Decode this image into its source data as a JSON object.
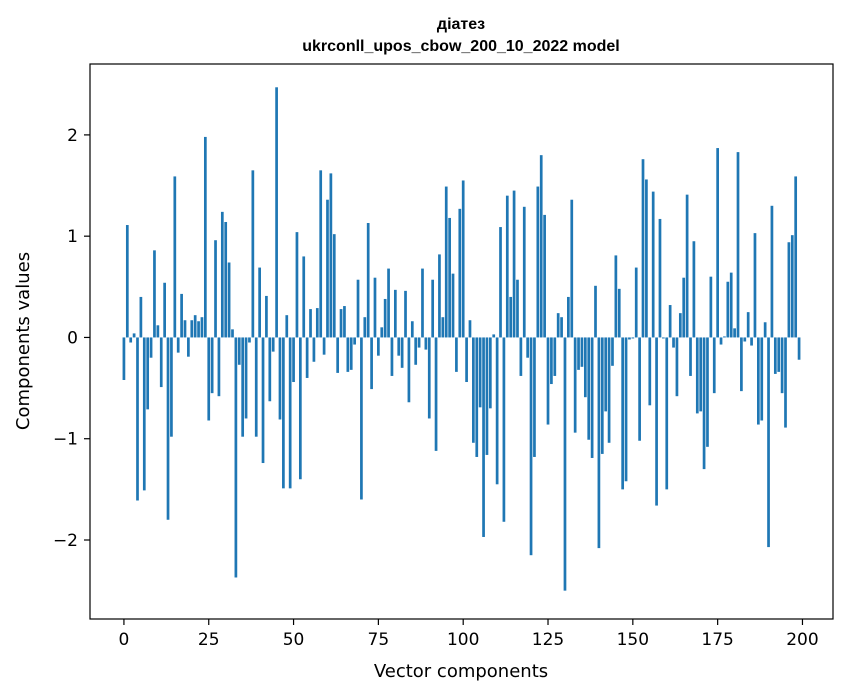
{
  "chart_data": {
    "type": "bar",
    "title_line1": "діатез",
    "title_line2": "ukrconll_upos_cbow_200_10_2022 model",
    "xlabel": "Vector components",
    "ylabel": "Components values",
    "xlim": [
      -10,
      209
    ],
    "ylim": [
      -2.78,
      2.7
    ],
    "xticks": [
      0,
      25,
      50,
      75,
      100,
      125,
      150,
      175,
      200
    ],
    "xtick_labels": [
      "0",
      "25",
      "50",
      "75",
      "100",
      "125",
      "150",
      "175",
      "200"
    ],
    "yticks": [
      -2,
      -1,
      0,
      1,
      2
    ],
    "ytick_labels": [
      "−2",
      "−1",
      "0",
      "1",
      "2"
    ],
    "bar_color": "#1f77b4",
    "values": [
      -0.42,
      1.11,
      -0.05,
      0.04,
      -1.61,
      0.4,
      -1.51,
      -0.71,
      -0.2,
      0.86,
      0.12,
      -0.49,
      0.54,
      -1.8,
      -0.98,
      1.59,
      -0.15,
      0.43,
      0.17,
      -0.19,
      0.17,
      0.22,
      0.16,
      0.2,
      1.98,
      -0.82,
      -0.55,
      0.96,
      -0.58,
      1.24,
      1.14,
      0.74,
      0.08,
      -2.37,
      -0.27,
      -0.98,
      -0.8,
      -0.05,
      1.65,
      -0.98,
      0.69,
      -1.24,
      0.41,
      -0.63,
      -0.14,
      2.47,
      -0.81,
      -1.49,
      0.22,
      -1.49,
      -0.44,
      1.04,
      -1.4,
      0.8,
      -0.4,
      0.28,
      -0.24,
      0.29,
      1.65,
      -0.17,
      1.36,
      1.62,
      1.02,
      -0.35,
      0.28,
      0.31,
      -0.34,
      -0.32,
      -0.07,
      0.57,
      -1.6,
      0.2,
      1.13,
      -0.51,
      0.59,
      -0.18,
      0.1,
      0.38,
      0.68,
      -0.38,
      0.47,
      -0.18,
      -0.3,
      0.46,
      -0.64,
      0.16,
      -0.27,
      -0.1,
      0.68,
      -0.12,
      -0.8,
      0.57,
      -1.12,
      0.82,
      0.2,
      1.49,
      1.18,
      0.63,
      -0.34,
      1.27,
      1.55,
      -0.44,
      0.17,
      -1.04,
      -1.18,
      -0.69,
      -1.97,
      -1.16,
      -0.7,
      0.03,
      -1.45,
      1.09,
      -1.82,
      1.4,
      0.4,
      1.45,
      0.57,
      -0.38,
      1.29,
      -0.2,
      -2.15,
      -1.18,
      1.49,
      1.8,
      1.21,
      -0.86,
      -0.46,
      -0.38,
      0.24,
      0.2,
      -2.5,
      0.4,
      1.36,
      -0.94,
      -0.32,
      -0.29,
      -0.59,
      -1.01,
      -1.19,
      0.51,
      -2.08,
      -1.15,
      -0.73,
      -1.04,
      -0.28,
      0.81,
      0.48,
      -1.5,
      -1.42,
      -0.02,
      -0.01,
      0.69,
      -1.02,
      1.76,
      1.56,
      -0.67,
      1.44,
      -1.66,
      1.17,
      -0.01,
      -1.5,
      0.32,
      -0.1,
      -0.58,
      0.24,
      0.59,
      1.41,
      -0.38,
      0.95,
      -0.75,
      -0.73,
      -1.3,
      -1.08,
      0.6,
      -0.55,
      1.87,
      -0.07,
      0.01,
      0.55,
      0.64,
      0.09,
      1.83,
      -0.53,
      -0.04,
      0.25,
      -0.08,
      1.03,
      -0.86,
      -0.82,
      0.15,
      -2.07,
      1.3,
      -0.36,
      -0.34,
      -0.55,
      -0.89,
      0.94,
      1.01,
      1.59,
      -0.22
    ]
  }
}
